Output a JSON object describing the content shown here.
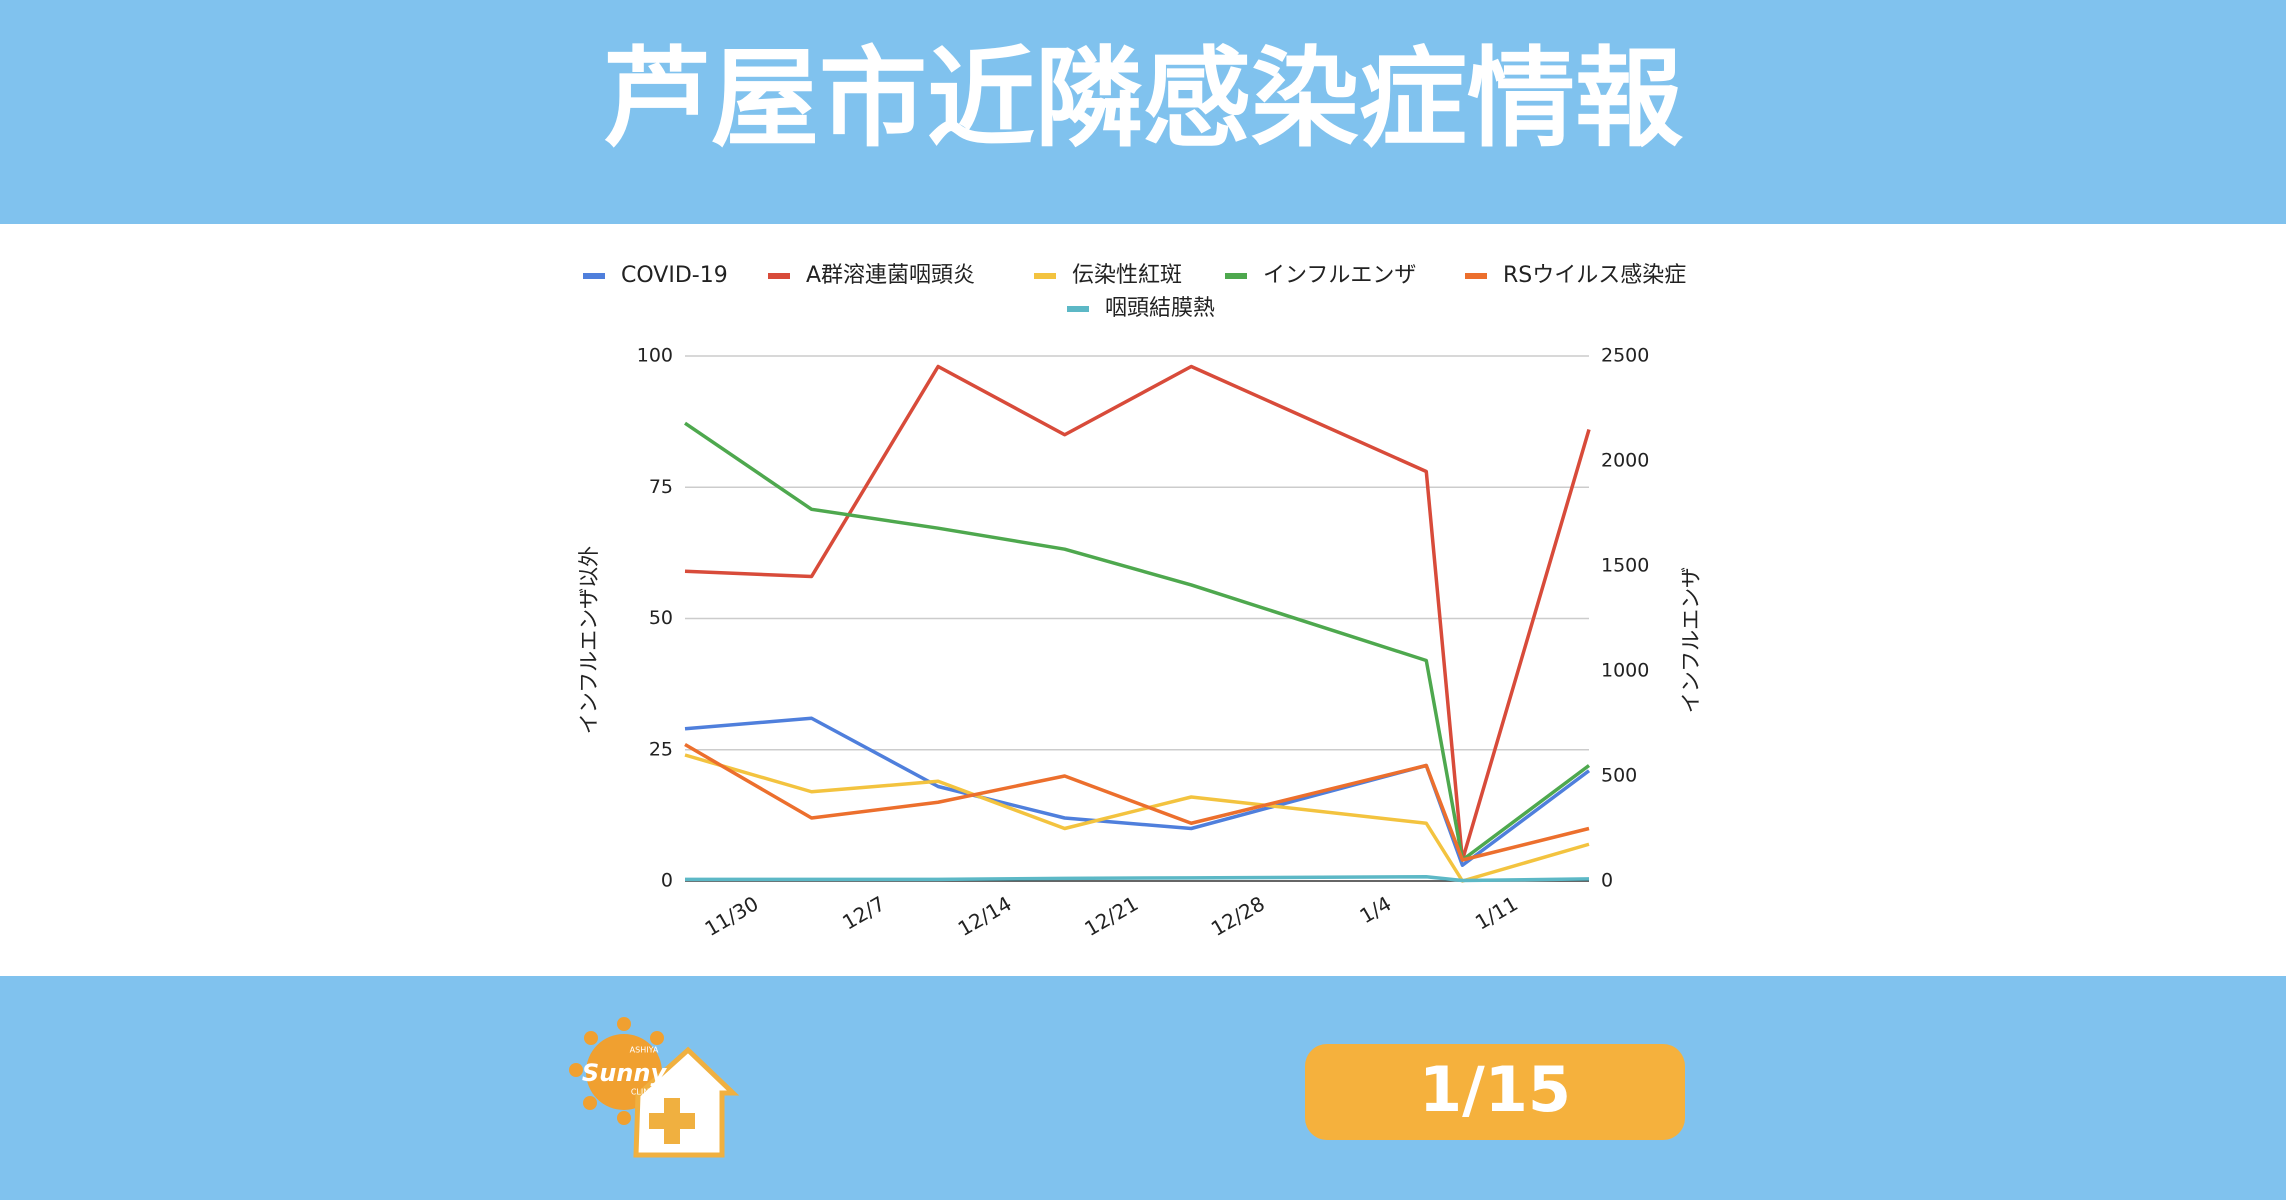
{
  "header": {
    "title": "芦屋市近隣感染症情報"
  },
  "chart_data": {
    "type": "line",
    "x": [
      -4,
      3,
      10,
      17,
      24,
      37,
      39,
      46
    ],
    "xlim": [
      -4,
      46
    ],
    "xticks": [
      {
        "value": 0,
        "label": "11/30"
      },
      {
        "value": 7,
        "label": "12/7"
      },
      {
        "value": 14,
        "label": "12/14"
      },
      {
        "value": 21,
        "label": "12/21"
      },
      {
        "value": 28,
        "label": "12/28"
      },
      {
        "value": 35,
        "label": "1/4"
      },
      {
        "value": 42,
        "label": "1/11"
      }
    ],
    "ylim": [
      0,
      100
    ],
    "yticks": [
      0,
      25,
      50,
      75,
      100
    ],
    "y2lim": [
      0,
      2500
    ],
    "y2ticks": [
      0,
      500,
      1000,
      1500,
      2000,
      2500
    ],
    "ylabel": "インフルエンザ以外",
    "y2label": "インフルエンザ",
    "grid": true,
    "legend": "top",
    "series": [
      {
        "name": "COVID-19",
        "color": "#4f7fdc",
        "values": [
          29,
          31,
          18,
          12,
          10,
          22,
          3,
          21
        ]
      },
      {
        "name": "A群溶連菌咽頭炎",
        "color": "#d84b3a",
        "values": [
          59,
          58,
          98,
          85,
          98,
          78,
          4,
          86
        ]
      },
      {
        "name": "伝染性紅斑",
        "color": "#f3c33f",
        "values": [
          24,
          17,
          19,
          10,
          16,
          11,
          0,
          7
        ]
      },
      {
        "name": "インフルエンザ",
        "color": "#4ea84e",
        "axis": "y2",
        "values": [
          2180,
          1770,
          1680,
          1580,
          1410,
          1050,
          100,
          550
        ]
      },
      {
        "name": "RSウイルス感染症",
        "color": "#ec6f2d",
        "values": [
          26,
          12,
          15,
          20,
          11,
          22,
          4,
          10
        ]
      },
      {
        "name": "咽頭結膜熱",
        "color": "#5cb8c6",
        "values": [
          0.3,
          0.3,
          0.3,
          0.5,
          0.6,
          0.8,
          0.1,
          0.4
        ]
      }
    ]
  },
  "footer": {
    "date": "1/15",
    "logo": {
      "name": "Sunny",
      "top": "ASHIYA",
      "bottom": "CLINIC"
    }
  }
}
